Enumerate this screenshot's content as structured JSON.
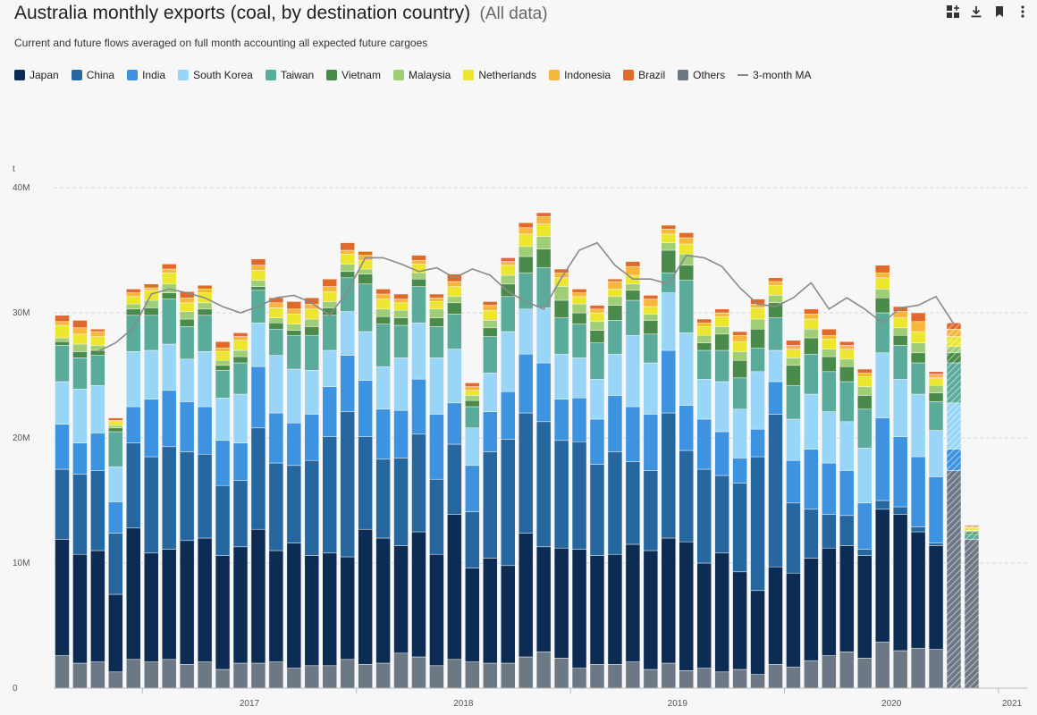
{
  "header": {
    "title": "Australia monthly exports (coal, by destination country)",
    "title_suffix": "(All data)",
    "subtitle": "Current and future flows averaged on full month accounting all expected future cargoes"
  },
  "toolbar": [
    {
      "name": "add-to-dashboard-icon"
    },
    {
      "name": "download-icon"
    },
    {
      "name": "bookmark-icon"
    },
    {
      "name": "more-menu-icon"
    }
  ],
  "colors": {
    "Japan": "#0d2c54",
    "China": "#25679e",
    "India": "#3d93e0",
    "South Korea": "#99d5f7",
    "Taiwan": "#5bab9a",
    "Vietnam": "#4a8a4a",
    "Malaysia": "#9fce77",
    "Netherlands": "#ece62f",
    "Indonesia": "#f7b73d",
    "Brazil": "#df6a2a",
    "Others": "#6d7885",
    "3-month MA": "#888888"
  },
  "chart_data": {
    "type": "bar",
    "stacked": true,
    "y_unit": "t",
    "ylim": [
      0,
      40000000
    ],
    "y_ticks": [
      "0",
      "10M",
      "20M",
      "30M",
      "40M"
    ],
    "x_tick_labels": [
      "2017",
      "2018",
      "2019",
      "2020",
      "2021"
    ],
    "legend": [
      "Japan",
      "China",
      "India",
      "South Korea",
      "Taiwan",
      "Vietnam",
      "Malaysia",
      "Netherlands",
      "Indonesia",
      "Brazil",
      "Others",
      "3-month MA"
    ],
    "grid": true,
    "months": [
      "2016-08",
      "2016-09",
      "2016-10",
      "2016-11",
      "2016-12",
      "2017-01",
      "2017-02",
      "2017-03",
      "2017-04",
      "2017-05",
      "2017-06",
      "2017-07",
      "2017-08",
      "2017-09",
      "2017-10",
      "2017-11",
      "2017-12",
      "2018-01",
      "2018-02",
      "2018-03",
      "2018-04",
      "2018-05",
      "2018-06",
      "2018-07",
      "2018-08",
      "2018-09",
      "2018-10",
      "2018-11",
      "2018-12",
      "2019-01",
      "2019-02",
      "2019-03",
      "2019-04",
      "2019-05",
      "2019-06",
      "2019-07",
      "2019-08",
      "2019-09",
      "2019-10",
      "2019-11",
      "2019-12",
      "2020-01",
      "2020-02",
      "2020-03",
      "2020-04",
      "2020-05",
      "2020-06",
      "2020-07",
      "2020-08",
      "2020-09",
      "2020-10",
      "2020-11"
    ],
    "series": [
      {
        "name": "Others",
        "values": [
          2.6,
          2.0,
          2.1,
          1.3,
          2.3,
          2.1,
          2.3,
          1.9,
          2.1,
          1.5,
          2.0,
          2.0,
          2.1,
          1.6,
          1.8,
          1.8,
          2.3,
          1.9,
          2.0,
          2.8,
          2.5,
          1.8,
          2.3,
          2.1,
          2.0,
          2.0,
          2.5,
          2.9,
          2.4,
          1.6,
          1.9,
          1.9,
          2.1,
          1.5,
          2.0,
          1.4,
          1.6,
          1.3,
          1.5,
          1.1,
          1.9,
          1.7,
          2.2,
          2.6,
          2.9,
          2.4,
          3.7,
          3.0,
          3.2,
          3.1,
          17.4,
          11.9
        ]
      },
      {
        "name": "Japan",
        "values": [
          9.3,
          8.7,
          8.9,
          6.2,
          10.5,
          8.7,
          8.8,
          9.9,
          9.9,
          9.1,
          9.3,
          10.7,
          8.9,
          10.0,
          8.8,
          9.0,
          8.2,
          10.8,
          10.0,
          8.6,
          10.0,
          8.9,
          11.6,
          7.5,
          8.4,
          7.8,
          9.9,
          8.4,
          8.8,
          9.5,
          8.7,
          8.8,
          9.4,
          9.5,
          10.0,
          10.3,
          8.4,
          9.5,
          7.8,
          6.7,
          7.8,
          7.5,
          8.2,
          8.6,
          8.5,
          8.2,
          10.6,
          10.9,
          9.3,
          8.3,
          0,
          0
        ]
      },
      {
        "name": "China",
        "values": [
          5.6,
          6.4,
          6.4,
          4.9,
          6.8,
          7.7,
          8.2,
          7.1,
          6.7,
          5.6,
          5.3,
          8.1,
          7.0,
          6.2,
          7.6,
          9.3,
          11.6,
          7.4,
          6.3,
          7.0,
          7.8,
          6.0,
          5.6,
          4.5,
          8.5,
          10.1,
          9.6,
          10.0,
          8.6,
          8.6,
          7.3,
          8.2,
          6.6,
          6.4,
          10.0,
          7.3,
          7.5,
          6.2,
          7.1,
          10.7,
          12.2,
          5.6,
          3.9,
          2.7,
          2.4,
          0.5,
          0.7,
          0.6,
          0.4,
          0.2,
          0,
          0
        ]
      },
      {
        "name": "India",
        "values": [
          3.6,
          2.5,
          3.0,
          2.5,
          2.9,
          4.6,
          4.5,
          4.0,
          3.8,
          3.6,
          3.0,
          4.9,
          4.0,
          3.4,
          3.7,
          4.0,
          4.5,
          4.5,
          4.0,
          3.8,
          4.4,
          5.2,
          3.3,
          3.7,
          3.2,
          3.8,
          4.7,
          4.7,
          3.3,
          3.5,
          3.6,
          4.5,
          4.4,
          4.5,
          5.0,
          3.6,
          4.0,
          3.5,
          2.0,
          2.2,
          2.6,
          3.4,
          4.8,
          4.1,
          3.6,
          3.7,
          6.6,
          5.6,
          5.6,
          5.3,
          1.7,
          0
        ]
      },
      {
        "name": "South Korea",
        "values": [
          3.4,
          4.3,
          3.8,
          2.8,
          4.4,
          3.9,
          3.7,
          3.4,
          4.4,
          3.4,
          3.9,
          3.5,
          4.6,
          4.3,
          3.5,
          2.9,
          3.5,
          3.9,
          3.4,
          4.2,
          4.5,
          4.5,
          4.3,
          3.0,
          3.1,
          4.8,
          3.6,
          4.4,
          3.6,
          3.2,
          3.2,
          3.3,
          5.7,
          4.1,
          4.6,
          5.8,
          3.2,
          4.0,
          3.9,
          4.6,
          2.5,
          3.3,
          4.4,
          4.1,
          3.9,
          4.4,
          5.2,
          4.6,
          5.0,
          3.7,
          3.7,
          0
        ]
      },
      {
        "name": "Taiwan",
        "values": [
          2.9,
          2.5,
          2.4,
          2.8,
          2.9,
          2.8,
          3.6,
          2.6,
          2.9,
          2.2,
          2.5,
          2.6,
          2.1,
          2.7,
          2.8,
          2.8,
          2.7,
          3.8,
          3.4,
          2.6,
          2.9,
          2.5,
          2.8,
          1.7,
          2.9,
          2.8,
          2.9,
          3.2,
          2.9,
          2.7,
          2.9,
          2.7,
          2.8,
          2.3,
          1.6,
          4.2,
          2.3,
          2.5,
          2.5,
          1.9,
          2.6,
          2.7,
          3.2,
          3.2,
          3.2,
          3.1,
          3.2,
          2.7,
          2.5,
          2.3,
          3.2,
          0.4
        ]
      },
      {
        "name": "Vietnam",
        "values": [
          0.3,
          0.5,
          0.4,
          0.3,
          0.5,
          0.6,
          0.5,
          0.6,
          0.5,
          0.4,
          0.5,
          0.3,
          0.5,
          0.4,
          0.7,
          0.6,
          0.5,
          0.8,
          0.6,
          0.6,
          0.6,
          0.7,
          0.9,
          0.5,
          0.7,
          1.0,
          1.3,
          1.5,
          1.4,
          0.9,
          1.0,
          1.2,
          0.8,
          1.1,
          1.8,
          1.2,
          0.6,
          1.3,
          1.4,
          1.5,
          1.2,
          1.6,
          1.3,
          1.2,
          1.2,
          1.1,
          1.2,
          0.8,
          0.8,
          0.7,
          0.8,
          0.2
        ]
      },
      {
        "name": "Malaysia",
        "values": [
          0.3,
          0.6,
          0.4,
          0.2,
          0.4,
          0.6,
          0.7,
          0.6,
          0.5,
          0.4,
          0.5,
          0.5,
          0.4,
          0.5,
          0.6,
          0.5,
          0.6,
          0.4,
          0.6,
          0.6,
          0.5,
          0.7,
          0.5,
          0.4,
          0.6,
          0.7,
          0.8,
          1.0,
          1.1,
          0.7,
          0.7,
          0.7,
          0.5,
          0.5,
          0.6,
          0.9,
          0.6,
          0.6,
          0.7,
          0.8,
          0.6,
          0.6,
          0.7,
          0.6,
          0.6,
          0.7,
          0.7,
          0.6,
          0.8,
          0.6,
          0.5,
          0.1
        ]
      },
      {
        "name": "Netherlands",
        "values": [
          1.0,
          0.8,
          0.7,
          0.3,
          0.6,
          0.8,
          0.9,
          0.7,
          0.8,
          0.7,
          0.8,
          0.8,
          0.8,
          0.8,
          0.8,
          0.8,
          0.8,
          0.7,
          0.8,
          0.6,
          0.7,
          0.6,
          0.8,
          0.4,
          0.8,
          0.8,
          1.0,
          1.0,
          0.7,
          0.6,
          0.7,
          0.6,
          0.7,
          0.6,
          0.7,
          0.8,
          0.7,
          0.8,
          0.8,
          0.9,
          0.8,
          0.7,
          0.8,
          0.8,
          0.8,
          0.8,
          0.9,
          0.8,
          0.9,
          0.6,
          0.8,
          0.2
        ]
      },
      {
        "name": "Indonesia",
        "values": [
          0.3,
          0.5,
          0.4,
          0.1,
          0.3,
          0.2,
          0.3,
          0.4,
          0.3,
          0.3,
          0.3,
          0.4,
          0.4,
          0.4,
          0.4,
          0.4,
          0.3,
          0.4,
          0.4,
          0.3,
          0.3,
          0.3,
          0.4,
          0.3,
          0.4,
          0.3,
          0.5,
          0.6,
          0.4,
          0.3,
          0.3,
          0.6,
          0.7,
          0.6,
          0.4,
          0.5,
          0.3,
          0.3,
          0.5,
          0.3,
          0.3,
          0.3,
          0.4,
          0.3,
          0.3,
          0.3,
          0.4,
          0.5,
          0.8,
          0.3,
          0.6,
          0.1
        ]
      },
      {
        "name": "Brazil",
        "values": [
          0.5,
          0.6,
          0.2,
          0.2,
          0.3,
          0.3,
          0.4,
          0.5,
          0.3,
          0.5,
          0.3,
          0.5,
          0.4,
          0.6,
          0.5,
          0.6,
          0.6,
          0.3,
          0.4,
          0.4,
          0.4,
          0.3,
          0.6,
          0.3,
          0.3,
          0.3,
          0.4,
          0.3,
          0.3,
          0.3,
          0.3,
          0.2,
          0.4,
          0.3,
          0.3,
          0.4,
          0.3,
          0.3,
          0.3,
          0.4,
          0.3,
          0.4,
          0.4,
          0.5,
          0.3,
          0.3,
          0.6,
          0.4,
          0.7,
          0.2,
          0.5,
          0.1
        ]
      }
    ],
    "forecast_months": [
      "2020-10",
      "2020-11"
    ],
    "moving_average": {
      "name": "3-month MA",
      "start_month": "2016-10",
      "values": [
        26.9,
        27.6,
        28.8,
        31.5,
        31.9,
        31.6,
        31.2,
        30.5,
        30.0,
        30.5,
        31.2,
        31.4,
        30.8,
        29.8,
        31.7,
        34.4,
        34.4,
        33.9,
        33.3,
        33.6,
        32.8,
        33.5,
        33.0,
        31.7,
        30.9,
        30.3,
        32.8,
        35.0,
        35.6,
        33.8,
        32.7,
        32.7,
        32.3,
        34.6,
        34.4,
        33.7,
        32.0,
        30.7,
        30.5,
        31.2,
        32.4,
        30.3,
        31.2,
        30.3,
        29.2,
        30.4,
        30.6,
        31.3,
        29.1
      ]
    }
  }
}
